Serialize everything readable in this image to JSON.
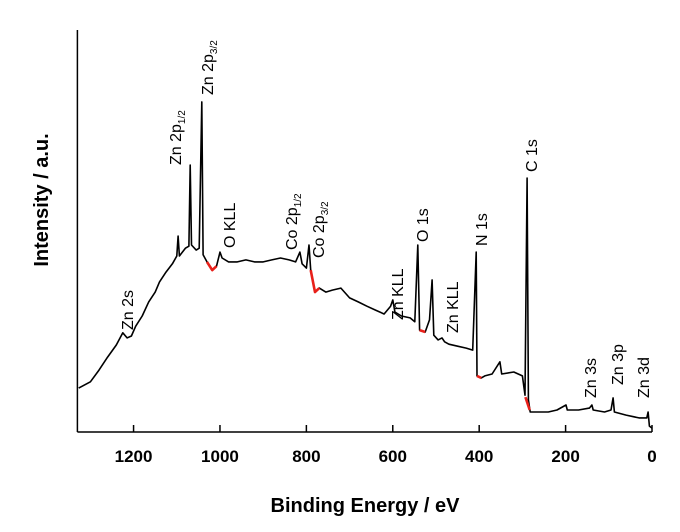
{
  "chart_data": {
    "type": "line",
    "x_label": "Binding Energy / eV",
    "y_label": "Intensity / a.u.",
    "xlim": [
      1330,
      0
    ],
    "ylim": [
      0,
      100
    ],
    "xticks": [
      1200,
      1000,
      800,
      600,
      400,
      200,
      0
    ],
    "series": [
      {
        "color": "#000000",
        "x": [
          1327,
          1300,
          1280,
          1260,
          1240,
          1225,
          1215,
          1205,
          1195,
          1180,
          1165,
          1150,
          1140,
          1125,
          1110,
          1100,
          1097,
          1094,
          1080,
          1072,
          1069,
          1066,
          1055,
          1048,
          1042,
          1039,
          1030,
          1018,
          1008,
          1000,
          995,
          980,
          960,
          940,
          920,
          900,
          880,
          860,
          840,
          825,
          815,
          810,
          800,
          794,
          790,
          780,
          770,
          755,
          740,
          720,
          700,
          680,
          660,
          640,
          620,
          605,
          600,
          595,
          580,
          560,
          549,
          542,
          538,
          525,
          515,
          509,
          505,
          495,
          486,
          480,
          470,
          450,
          430,
          415,
          407,
          405,
          395,
          387,
          370,
          352,
          348,
          320,
          300,
          294,
          289,
          286,
          282,
          260,
          240,
          220,
          199,
          196,
          170,
          145,
          139,
          136,
          110,
          95,
          90,
          87,
          60,
          30,
          12,
          9,
          6,
          0
        ],
        "values": [
          11.2,
          12.8,
          15.8,
          19.1,
          22.2,
          25.3,
          24.0,
          24.5,
          27.0,
          29.6,
          33.2,
          35.7,
          38.3,
          40.8,
          42.9,
          44.9,
          50.0,
          44.9,
          46.9,
          47.4,
          68.1,
          47.7,
          46.4,
          46.9,
          84.2,
          45.2,
          43.4,
          41.3,
          42.3,
          45.9,
          44.4,
          43.4,
          43.4,
          43.9,
          43.4,
          43.4,
          43.9,
          44.4,
          43.9,
          43.4,
          45.9,
          42.9,
          41.8,
          47.7,
          41.3,
          35.7,
          36.7,
          35.7,
          36.2,
          36.7,
          34.2,
          33.2,
          32.1,
          31.1,
          30.1,
          32.1,
          33.7,
          30.6,
          29.6,
          29.1,
          28.1,
          47.7,
          26.0,
          25.5,
          28.6,
          38.8,
          24.7,
          23.5,
          24.0,
          23.0,
          22.4,
          21.9,
          21.4,
          20.9,
          45.9,
          14.3,
          13.8,
          14.3,
          14.8,
          17.9,
          14.8,
          15.3,
          14.3,
          9.4,
          64.8,
          8.2,
          5.1,
          5.1,
          5.1,
          5.6,
          6.9,
          5.6,
          5.6,
          6.1,
          6.9,
          5.6,
          5.1,
          5.6,
          8.7,
          5.1,
          4.3,
          3.6,
          3.6,
          5.1,
          1.5,
          1.0
        ]
      },
      {
        "color": "#e8201a",
        "x": [
          1030,
          1018,
          1008,
          null,
          790,
          780,
          770,
          null,
          538,
          525,
          null,
          405,
          395,
          null,
          293,
          283
        ],
        "values": [
          43.4,
          41.3,
          42.3,
          null,
          41.3,
          35.7,
          36.7,
          null,
          26.0,
          25.5,
          null,
          14.3,
          13.8,
          null,
          8.9,
          5.6
        ]
      }
    ],
    "annotations": [
      {
        "text": "Zn 2s"
      },
      {
        "text": "Zn 2p",
        "sub": "1/2"
      },
      {
        "text": "Zn 2p",
        "sub": "3/2"
      },
      {
        "text": "O KLL"
      },
      {
        "text": "Co 2p",
        "sub": "1/2"
      },
      {
        "text": "Co 2p",
        "sub": "3/2"
      },
      {
        "text": "Zn KLL"
      },
      {
        "text": "O 1s"
      },
      {
        "text": "Zn KLL"
      },
      {
        "text": "N 1s"
      },
      {
        "text": "C 1s"
      },
      {
        "text": "Zn 3s"
      },
      {
        "text": "Zn 3p"
      },
      {
        "text": "Zn 3d"
      }
    ]
  }
}
